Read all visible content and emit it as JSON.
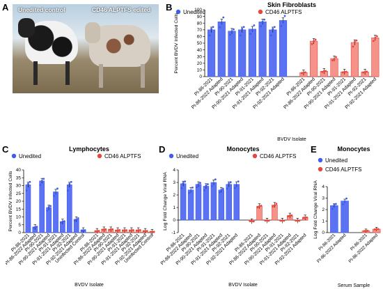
{
  "panel_letters": {
    "a": "A",
    "b": "B",
    "c": "C",
    "d": "D",
    "e": "E"
  },
  "photo": {
    "left_caption": "Unedited control",
    "right_caption": "CD46 ALPTFS edited"
  },
  "colors": {
    "unedited": "#3e5cf0",
    "unedited_fill": "#5b73f2",
    "edited": "#e8463a",
    "edited_fill": "#f5938a"
  },
  "chart_data": [
    {
      "id": "B",
      "type": "bar",
      "title": "Skin Fibroblasts",
      "xlabel": "BVDV Isolate",
      "ylabel": "Percent BVDV Infected Cells",
      "ylim": [
        0,
        100
      ],
      "yticks": [
        0,
        10,
        20,
        30,
        40,
        50,
        60,
        70,
        80,
        90,
        100
      ],
      "legend": [
        "Unedited",
        "CD46 ALPTFS"
      ],
      "legend_position": "top",
      "categories": [
        "PI-86-2021",
        "PI-86-2022 Adapted",
        "PI-90-2021",
        "PI-90-2021 Adapted",
        "PI-91-2021",
        "PI-91-2021 Adapted",
        "PI-92-2021",
        "PI-92-2021 Adapted"
      ],
      "series": [
        {
          "name": "Unedited",
          "values": [
            70,
            82,
            68,
            70,
            71,
            82,
            70,
            84
          ]
        },
        {
          "name": "CD46 ALPTFS",
          "values": [
            6,
            53,
            8,
            27,
            7,
            51,
            7,
            58
          ]
        }
      ]
    },
    {
      "id": "C",
      "type": "bar",
      "title": "Lymphocytes",
      "xlabel": "BVDV Isolate",
      "ylabel": "Percent BVDV Infected Cells",
      "ylim": [
        0,
        40
      ],
      "yticks": [
        0,
        5,
        10,
        15,
        20,
        25,
        30,
        35,
        40
      ],
      "legend": [
        "Unedited",
        "CD46 ALPTFS"
      ],
      "legend_position": "top",
      "categories": [
        "PI-86-2021",
        "PI-86-2022 Adapted",
        "PI-90-2021",
        "PI-90-2021 Adapted",
        "PI-91-2021",
        "PI-91-2021 Adapted",
        "PI-92-2021",
        "PI-92-2021 Adapted",
        "Uninfected Control"
      ],
      "series": [
        {
          "name": "Unedited",
          "values": [
            30.5,
            3.5,
            33,
            16,
            26,
            7,
            30.5,
            8.5,
            1.5
          ]
        },
        {
          "name": "CD46 ALPTFS",
          "values": [
            1,
            2,
            2,
            1.5,
            1.5,
            1.5,
            1.5,
            1,
            0.5
          ]
        }
      ]
    },
    {
      "id": "D",
      "type": "bar",
      "title": "Monocytes",
      "xlabel": "BVDV Isolate",
      "ylabel": "Log Fold Change Viral RNA",
      "ylim": [
        -1,
        4
      ],
      "yticks": [
        -1,
        0,
        1,
        2,
        3,
        4
      ],
      "legend": [
        "Unedited",
        "CD46 ALPTFS"
      ],
      "legend_position": "top",
      "categories": [
        "PI-86-2021",
        "PI-86-2022 Adapted",
        "PI-90-2021",
        "PI-90-2021 Adapted",
        "PI-91-2021",
        "PI-91-2021 Adapted",
        "PI-92-2021",
        "PI-92-2021 Adapted"
      ],
      "series": [
        {
          "name": "Unedited",
          "values": [
            2.9,
            2.4,
            2.85,
            2.7,
            3.0,
            2.4,
            2.85,
            2.85
          ]
        },
        {
          "name": "CD46 ALPTFS",
          "values": [
            -0.1,
            1.1,
            -0.05,
            1.2,
            -0.05,
            0.35,
            -0.05,
            0.2
          ]
        }
      ]
    },
    {
      "id": "E",
      "type": "bar",
      "title": "Monocytes",
      "xlabel": "Serum Sample",
      "ylabel": "Log Fold Change Viral RNA",
      "ylim": [
        0,
        4
      ],
      "yticks": [
        0,
        1,
        2,
        3,
        4
      ],
      "legend": [
        "Unedited",
        "CD46 ALPTFS"
      ],
      "legend_position": "top",
      "categories": [
        "PI-86-2021",
        "PI-86-2022 Adapted"
      ],
      "series": [
        {
          "name": "Unedited",
          "values": [
            2.35,
            2.75
          ]
        },
        {
          "name": "CD46 ALPTFS",
          "values": [
            0.15,
            0.3
          ]
        }
      ]
    }
  ]
}
